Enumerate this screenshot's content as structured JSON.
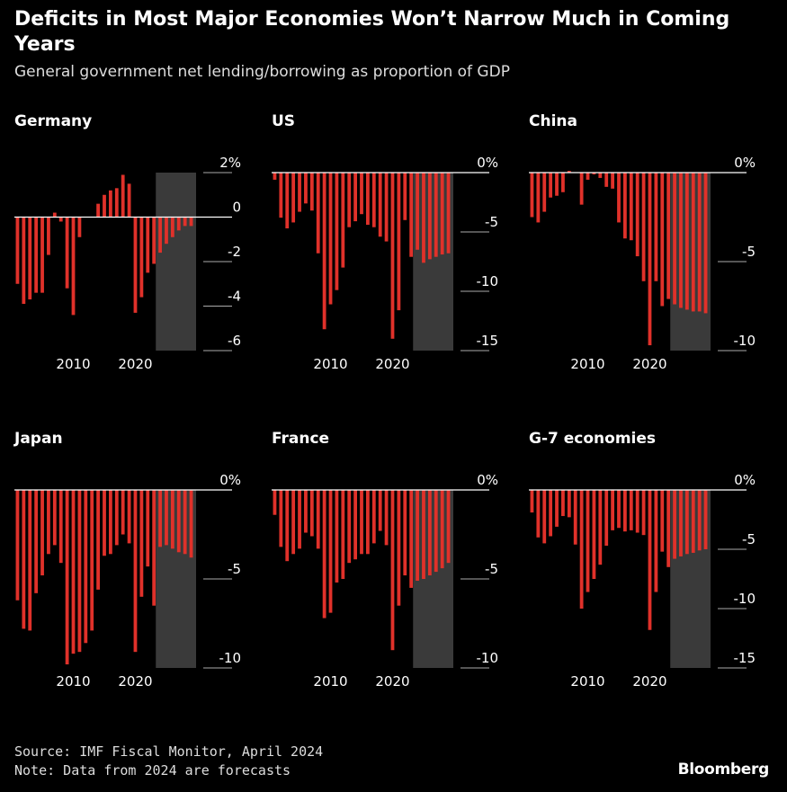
{
  "header": {
    "title": "Deficits in Most Major Economies Won’t Narrow Much in Coming Years",
    "subtitle": "General government net lending/borrowing as proportion of GDP"
  },
  "footer": {
    "source": "Source: IMF Fiscal Monitor, April 2024",
    "note": "Note: Data from 2024 are forecasts",
    "brand": "Bloomberg"
  },
  "colors": {
    "bar": "#e0312a",
    "forecast_shade": "#3a3a3a",
    "axis": "#ffffff",
    "tick": "#aaaaaa"
  },
  "chart_data": [
    {
      "type": "bar",
      "title": "Germany",
      "x": [
        2001,
        2002,
        2003,
        2004,
        2005,
        2006,
        2007,
        2008,
        2009,
        2010,
        2011,
        2012,
        2013,
        2014,
        2015,
        2016,
        2017,
        2018,
        2019,
        2020,
        2021,
        2022,
        2023,
        2024,
        2025,
        2026,
        2027,
        2028,
        2029
      ],
      "values": [
        -3.0,
        -3.9,
        -3.7,
        -3.4,
        -3.4,
        -1.7,
        0.2,
        -0.2,
        -3.2,
        -4.4,
        -0.9,
        0.0,
        0.0,
        0.6,
        1.0,
        1.2,
        1.3,
        1.9,
        1.5,
        -4.3,
        -3.6,
        -2.5,
        -2.1,
        -1.6,
        -1.2,
        -0.9,
        -0.6,
        -0.4,
        -0.4
      ],
      "forecast_from": 2024,
      "ylim": [
        -6,
        2
      ],
      "yticks": [
        2,
        0,
        -2,
        -4,
        -6
      ],
      "ytick_labels": [
        "2%",
        "0",
        "-2",
        "-4",
        "-6"
      ],
      "xticks": [
        2010,
        2020
      ]
    },
    {
      "type": "bar",
      "title": "US",
      "x": [
        2001,
        2002,
        2003,
        2004,
        2005,
        2006,
        2007,
        2008,
        2009,
        2010,
        2011,
        2012,
        2013,
        2014,
        2015,
        2016,
        2017,
        2018,
        2019,
        2020,
        2021,
        2022,
        2023,
        2024,
        2025,
        2026,
        2027,
        2028,
        2029
      ],
      "values": [
        -0.6,
        -3.8,
        -4.7,
        -4.2,
        -3.3,
        -2.6,
        -3.2,
        -6.8,
        -13.2,
        -11.1,
        -9.9,
        -8.0,
        -4.6,
        -4.1,
        -3.5,
        -4.4,
        -4.6,
        -5.4,
        -5.8,
        -14.0,
        -11.6,
        -4.0,
        -7.1,
        -6.5,
        -7.6,
        -7.3,
        -7.1,
        -6.9,
        -6.8
      ],
      "forecast_from": 2024,
      "ylim": [
        -15,
        0
      ],
      "yticks": [
        0,
        -5,
        -10,
        -15
      ],
      "ytick_labels": [
        "0%",
        "-5",
        "-10",
        "-15"
      ],
      "xticks": [
        2010,
        2020
      ]
    },
    {
      "type": "bar",
      "title": "China",
      "x": [
        2001,
        2002,
        2003,
        2004,
        2005,
        2006,
        2007,
        2008,
        2009,
        2010,
        2011,
        2012,
        2013,
        2014,
        2015,
        2016,
        2017,
        2018,
        2019,
        2020,
        2021,
        2022,
        2023,
        2024,
        2025,
        2026,
        2027,
        2028,
        2029
      ],
      "values": [
        -2.5,
        -2.8,
        -2.2,
        -1.4,
        -1.3,
        -1.1,
        0.1,
        0.0,
        -1.8,
        -0.4,
        -0.1,
        -0.3,
        -0.8,
        -0.9,
        -2.8,
        -3.7,
        -3.8,
        -4.7,
        -6.1,
        -9.7,
        -6.1,
        -7.5,
        -7.1,
        -7.4,
        -7.6,
        -7.7,
        -7.8,
        -7.8,
        -7.9
      ],
      "forecast_from": 2024,
      "ylim": [
        -10,
        0
      ],
      "yticks": [
        0,
        -5,
        -10
      ],
      "ytick_labels": [
        "0%",
        "-5",
        "-10"
      ],
      "xticks": [
        2010,
        2020
      ]
    },
    {
      "type": "bar",
      "title": "Japan",
      "x": [
        2001,
        2002,
        2003,
        2004,
        2005,
        2006,
        2007,
        2008,
        2009,
        2010,
        2011,
        2012,
        2013,
        2014,
        2015,
        2016,
        2017,
        2018,
        2019,
        2020,
        2021,
        2022,
        2023,
        2024,
        2025,
        2026,
        2027,
        2028,
        2029
      ],
      "values": [
        -6.2,
        -7.8,
        -7.9,
        -5.8,
        -4.8,
        -3.6,
        -3.1,
        -4.1,
        -9.8,
        -9.2,
        -9.1,
        -8.6,
        -7.9,
        -5.6,
        -3.7,
        -3.6,
        -3.1,
        -2.5,
        -3.0,
        -9.1,
        -6.0,
        -4.3,
        -6.5,
        -3.2,
        -3.1,
        -3.3,
        -3.5,
        -3.6,
        -3.8
      ],
      "forecast_from": 2024,
      "ylim": [
        -10,
        0
      ],
      "yticks": [
        0,
        -5,
        -10
      ],
      "ytick_labels": [
        "0%",
        "-5",
        "-10"
      ],
      "xticks": [
        2010,
        2020
      ]
    },
    {
      "type": "bar",
      "title": "France",
      "x": [
        2001,
        2002,
        2003,
        2004,
        2005,
        2006,
        2007,
        2008,
        2009,
        2010,
        2011,
        2012,
        2013,
        2014,
        2015,
        2016,
        2017,
        2018,
        2019,
        2020,
        2021,
        2022,
        2023,
        2024,
        2025,
        2026,
        2027,
        2028,
        2029
      ],
      "values": [
        -1.4,
        -3.2,
        -4.0,
        -3.6,
        -3.3,
        -2.4,
        -2.6,
        -3.3,
        -7.2,
        -6.9,
        -5.2,
        -5.0,
        -4.1,
        -3.9,
        -3.6,
        -3.6,
        -3.0,
        -2.3,
        -3.1,
        -9.0,
        -6.5,
        -4.8,
        -5.5,
        -5.1,
        -5.0,
        -4.8,
        -4.6,
        -4.4,
        -4.1
      ],
      "forecast_from": 2024,
      "ylim": [
        -10,
        0
      ],
      "yticks": [
        0,
        -5,
        -10
      ],
      "ytick_labels": [
        "0%",
        "-5",
        "-10"
      ],
      "xticks": [
        2010,
        2020
      ]
    },
    {
      "type": "bar",
      "title": "G-7 economies",
      "x": [
        2001,
        2002,
        2003,
        2004,
        2005,
        2006,
        2007,
        2008,
        2009,
        2010,
        2011,
        2012,
        2013,
        2014,
        2015,
        2016,
        2017,
        2018,
        2019,
        2020,
        2021,
        2022,
        2023,
        2024,
        2025,
        2026,
        2027,
        2028,
        2029
      ],
      "values": [
        -1.9,
        -4.0,
        -4.5,
        -3.9,
        -3.1,
        -2.2,
        -2.3,
        -4.6,
        -10.0,
        -8.6,
        -7.5,
        -6.3,
        -4.7,
        -3.4,
        -3.2,
        -3.5,
        -3.4,
        -3.6,
        -3.8,
        -11.8,
        -8.6,
        -5.2,
        -6.5,
        -5.8,
        -5.6,
        -5.4,
        -5.3,
        -5.1,
        -5.0
      ],
      "forecast_from": 2024,
      "ylim": [
        -15,
        0
      ],
      "yticks": [
        0,
        -5,
        -10,
        -15
      ],
      "ytick_labels": [
        "0%",
        "-5",
        "-10",
        "-15"
      ],
      "xticks": [
        2010,
        2020
      ]
    }
  ]
}
